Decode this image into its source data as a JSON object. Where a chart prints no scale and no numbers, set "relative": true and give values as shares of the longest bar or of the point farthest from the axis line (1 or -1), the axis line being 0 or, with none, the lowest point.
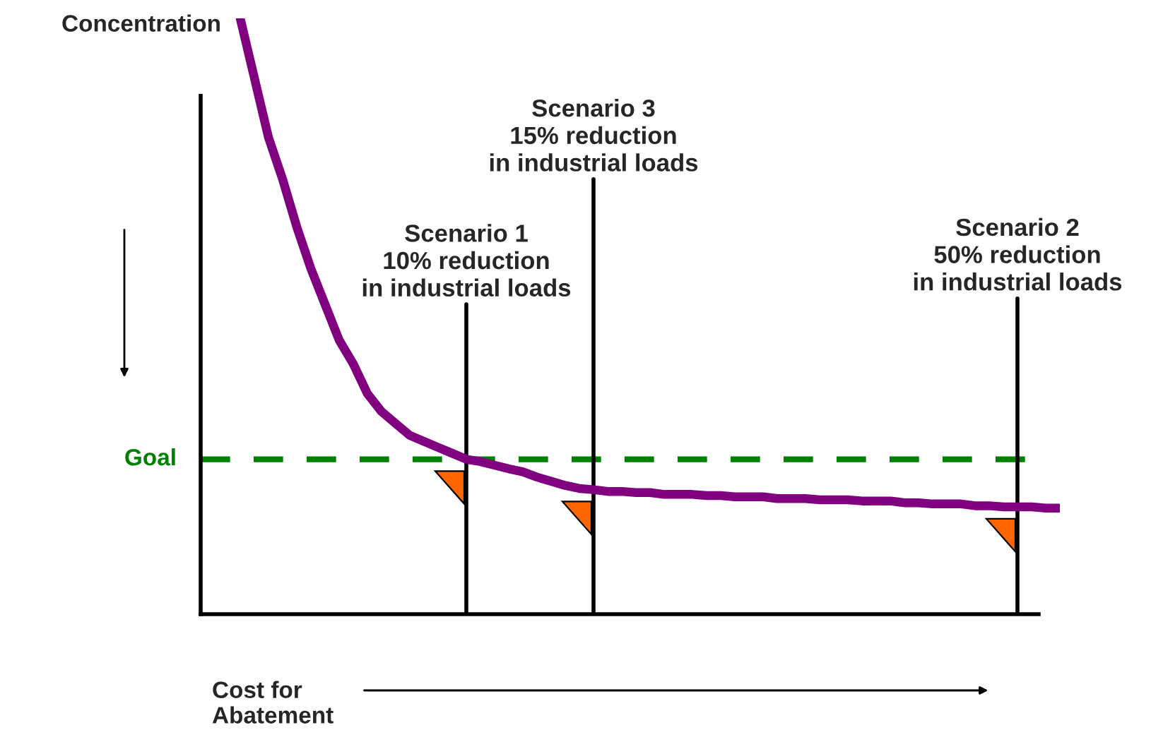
{
  "chart_data": {
    "type": "line",
    "relative": true,
    "ylabel": "Concentration",
    "xlabel": "Cost for\nAbatement",
    "categories": [
      null,
      null,
      null,
      null,
      null,
      null,
      null,
      null,
      null,
      null,
      null,
      null,
      null,
      null,
      null,
      null,
      null,
      null,
      null,
      null,
      null,
      null,
      null,
      null,
      null,
      null,
      null,
      null,
      null,
      null,
      null,
      null,
      null,
      null,
      null,
      null,
      null,
      null,
      null,
      null,
      null,
      null,
      null,
      null,
      null,
      null,
      null,
      null,
      null,
      null,
      null,
      null,
      null,
      null,
      null,
      null,
      null,
      null,
      null
    ],
    "series": [
      {
        "color": "#800080",
        "values": [
          1.0,
          0.9,
          0.8,
          0.73,
          0.65,
          0.58,
          0.52,
          0.46,
          0.42,
          0.37,
          0.34,
          0.32,
          0.3,
          0.29,
          0.28,
          0.27,
          0.26,
          0.256,
          0.25,
          0.244,
          0.239,
          0.23,
          0.223,
          0.216,
          0.211,
          0.209,
          0.206,
          0.206,
          0.204,
          0.204,
          0.201,
          0.201,
          0.201,
          0.199,
          0.199,
          0.197,
          0.197,
          0.197,
          0.194,
          0.194,
          0.194,
          0.192,
          0.192,
          0.192,
          0.19,
          0.19,
          0.19,
          0.187,
          0.187,
          0.185,
          0.185,
          0.185,
          0.182,
          0.182,
          0.18,
          0.18,
          0.18,
          0.178,
          0.178
        ]
      }
    ],
    "ref_lines": [
      {
        "axis": "y",
        "value": 0.26,
        "label": "Goal",
        "color": "#008000",
        "line_style": "dashed"
      }
    ],
    "annotations": [
      "Scenario 1\n10% reduction\nin industrial loads",
      "Scenario 3\n15% reduction\nin industrial loads",
      "Scenario 2\n50% reduction\nin industrial loads"
    ],
    "line_style": "solid",
    "marker": "none",
    "legend": false
  }
}
